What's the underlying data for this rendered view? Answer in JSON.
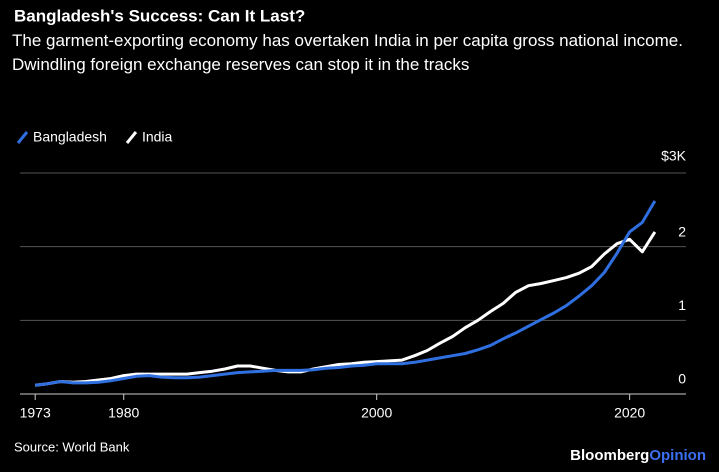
{
  "chart_data": {
    "type": "line",
    "title": "Bangladesh's Success: Can It Last?",
    "subtitle": "The garment-exporting economy has overtaken India in per capita gross national income. Dwindling foreign exchange reserves can stop it in the tracks",
    "x": [
      1973,
      1974,
      1975,
      1976,
      1977,
      1978,
      1979,
      1980,
      1981,
      1982,
      1983,
      1984,
      1985,
      1986,
      1987,
      1988,
      1989,
      1990,
      1991,
      1992,
      1993,
      1994,
      1995,
      1996,
      1997,
      1998,
      1999,
      2000,
      2001,
      2002,
      2003,
      2004,
      2005,
      2006,
      2007,
      2008,
      2009,
      2010,
      2011,
      2012,
      2013,
      2014,
      2015,
      2016,
      2017,
      2018,
      2019,
      2020,
      2021,
      2022
    ],
    "series": [
      {
        "name": "Bangladesh",
        "color": "#2f6fe0",
        "values": [
          0.12,
          0.14,
          0.17,
          0.15,
          0.15,
          0.16,
          0.18,
          0.21,
          0.24,
          0.25,
          0.23,
          0.22,
          0.22,
          0.23,
          0.25,
          0.27,
          0.29,
          0.3,
          0.31,
          0.32,
          0.32,
          0.32,
          0.33,
          0.35,
          0.36,
          0.38,
          0.39,
          0.41,
          0.41,
          0.41,
          0.43,
          0.46,
          0.49,
          0.52,
          0.55,
          0.6,
          0.66,
          0.75,
          0.83,
          0.92,
          1.01,
          1.1,
          1.2,
          1.33,
          1.47,
          1.65,
          1.91,
          2.2,
          2.33,
          2.62
        ]
      },
      {
        "name": "India",
        "color": "#ffffff",
        "values": [
          0.12,
          0.14,
          0.17,
          0.16,
          0.17,
          0.19,
          0.21,
          0.25,
          0.27,
          0.27,
          0.27,
          0.27,
          0.27,
          0.29,
          0.31,
          0.34,
          0.38,
          0.38,
          0.35,
          0.32,
          0.3,
          0.3,
          0.34,
          0.37,
          0.4,
          0.41,
          0.43,
          0.44,
          0.45,
          0.46,
          0.52,
          0.59,
          0.69,
          0.78,
          0.9,
          1.0,
          1.12,
          1.23,
          1.38,
          1.47,
          1.5,
          1.54,
          1.58,
          1.64,
          1.73,
          1.9,
          2.04,
          2.1,
          1.93,
          2.2
        ]
      }
    ],
    "xlim": [
      1971.8,
      2022.4
    ],
    "xticks": [
      1973,
      1980,
      2000,
      2020
    ],
    "ylim": [
      0,
      3
    ],
    "yticks": [
      0,
      1,
      2,
      {
        "value": 3,
        "label": "$3K"
      }
    ],
    "grid": true,
    "source": "Source: World Bank",
    "brand": [
      "Bloomberg",
      "Opinion"
    ]
  }
}
